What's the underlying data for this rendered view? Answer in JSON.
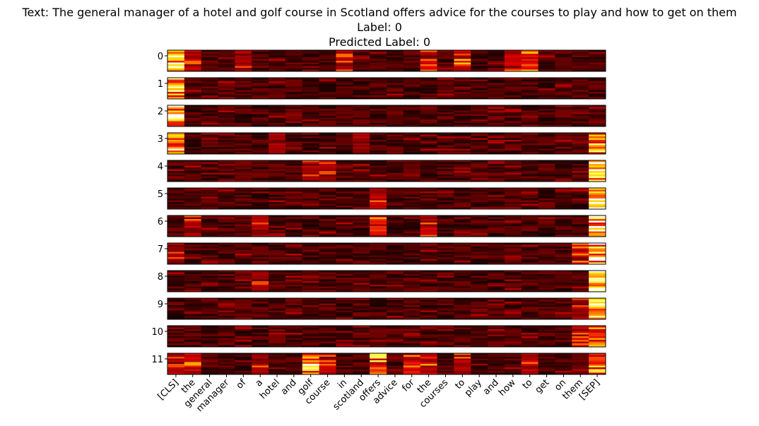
{
  "chart_data": {
    "type": "heatmap",
    "title_lines": [
      "Text: The general manager of a hotel and golf course in Scotland offers advice for the courses to play and how to get on them",
      "Label: 0",
      "Predicted Label: 0"
    ],
    "layer_labels": [
      "0",
      "1",
      "2",
      "3",
      "4",
      "5",
      "6",
      "7",
      "8",
      "9",
      "10",
      "11"
    ],
    "tokens": [
      "[CLS]",
      "the",
      "general",
      "manager",
      "of",
      "a",
      "hotel",
      "and",
      "golf",
      "course",
      "in",
      "scotland",
      "offers",
      "advice",
      "for",
      "the",
      "courses",
      "to",
      "play",
      "and",
      "how",
      "to",
      "get",
      "on",
      "them",
      "[SEP]"
    ],
    "colormap": "hot",
    "colormap_stops": [
      "#000000",
      "#8b0000",
      "#e00000",
      "#ff6a00",
      "#ffd000",
      "#ffff60",
      "#ffffff"
    ],
    "rows_per_layer": 12,
    "emphasis": [
      {
        "layer": "0",
        "token": "[CLS]",
        "level": 0.8
      },
      {
        "layer": "0",
        "token": "to",
        "level": 0.5
      },
      {
        "layer": "0",
        "token": "how",
        "level": 0.4
      },
      {
        "layer": "0",
        "token": "in",
        "level": 0.35
      },
      {
        "layer": "0",
        "token": "of",
        "level": 0.3
      },
      {
        "layer": "0",
        "token": "the",
        "level": 0.35
      },
      {
        "layer": "1",
        "token": "[CLS]",
        "level": 0.75
      },
      {
        "layer": "2",
        "token": "[CLS]",
        "level": 0.95
      },
      {
        "layer": "3",
        "token": "[CLS]",
        "level": 0.8
      },
      {
        "layer": "3",
        "token": "[SEP]",
        "level": 0.7
      },
      {
        "layer": "3",
        "token": "hotel",
        "level": 0.3
      },
      {
        "layer": "3",
        "token": "scotland",
        "level": 0.3
      },
      {
        "layer": "4",
        "token": "[SEP]",
        "level": 0.95
      },
      {
        "layer": "4",
        "token": "golf",
        "level": 0.3
      },
      {
        "layer": "4",
        "token": "course",
        "level": 0.3
      },
      {
        "layer": "5",
        "token": "[SEP]",
        "level": 0.85
      },
      {
        "layer": "5",
        "token": "offers",
        "level": 0.35
      },
      {
        "layer": "6",
        "token": "[SEP]",
        "level": 0.85
      },
      {
        "layer": "6",
        "token": "offers",
        "level": 0.45
      },
      {
        "layer": "6",
        "token": "the",
        "level": 0.35
      },
      {
        "layer": "6",
        "token": "a",
        "level": 0.3
      },
      {
        "layer": "7",
        "token": "[SEP]",
        "level": 0.9
      },
      {
        "layer": "7",
        "token": "them",
        "level": 0.4
      },
      {
        "layer": "7",
        "token": "[CLS]",
        "level": 0.3
      },
      {
        "layer": "8",
        "token": "[SEP]",
        "level": 0.95
      },
      {
        "layer": "8",
        "token": "a",
        "level": 0.3
      },
      {
        "layer": "9",
        "token": "[SEP]",
        "level": 0.95
      },
      {
        "layer": "9",
        "token": "them",
        "level": 0.3
      },
      {
        "layer": "10",
        "token": "[SEP]",
        "level": 0.75
      },
      {
        "layer": "10",
        "token": "them",
        "level": 0.35
      },
      {
        "layer": "11",
        "token": "golf",
        "level": 0.9
      },
      {
        "layer": "11",
        "token": "offers",
        "level": 0.65
      },
      {
        "layer": "11",
        "token": "[SEP]",
        "level": 0.6
      },
      {
        "layer": "11",
        "token": "the",
        "level": 0.45
      },
      {
        "layer": "11",
        "token": "for",
        "level": 0.4
      },
      {
        "layer": "11",
        "token": "a",
        "level": 0.35
      },
      {
        "layer": "11",
        "token": "to",
        "level": 0.35
      },
      {
        "layer": "11",
        "token": "course",
        "level": 0.35
      },
      {
        "layer": "11",
        "token": "[CLS]",
        "level": 0.3
      }
    ]
  }
}
